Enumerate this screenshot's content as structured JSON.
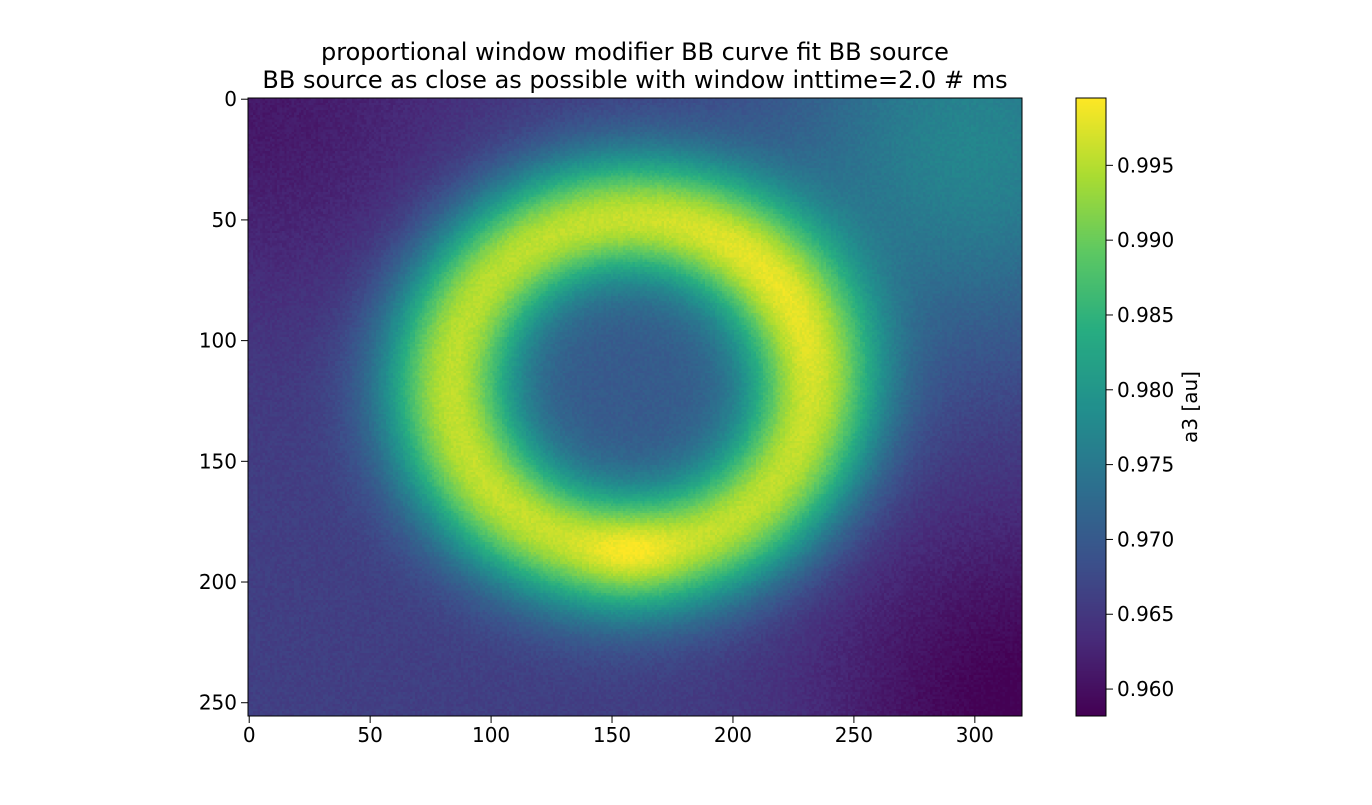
{
  "chart_data": {
    "type": "heatmap",
    "title": [
      "proportional window modifier BB curve fit BB source",
      "BB source as close as possible with window inttime=2.0 # ms"
    ],
    "xlabel": "",
    "ylabel": "",
    "image_shape": {
      "rows": 256,
      "cols": 320
    },
    "xlim": [
      -0.5,
      319.5
    ],
    "ylim": [
      255.5,
      -0.5
    ],
    "xticks": [
      0,
      50,
      100,
      150,
      200,
      250,
      300
    ],
    "yticks": [
      0,
      50,
      100,
      150,
      200,
      250
    ],
    "colormap": "viridis",
    "colorbar": {
      "label": "a3 [au]",
      "range": [
        0.9582,
        0.9995
      ],
      "ticks": [
        0.96,
        0.965,
        0.97,
        0.975,
        0.98,
        0.985,
        0.99,
        0.995
      ],
      "tick_labels": [
        "0.960",
        "0.965",
        "0.970",
        "0.975",
        "0.980",
        "0.985",
        "0.990",
        "0.995"
      ]
    },
    "field": {
      "ring_center": {
        "x": 158,
        "y": 118
      },
      "ring_radius": 74,
      "ring_width": 26,
      "ring_peak": 0.996,
      "brightest_point": {
        "x": 158,
        "y": 188,
        "value": 0.9995
      },
      "inner_plateau": 0.97,
      "outer_background": 0.966,
      "darkest_corners": {
        "top_left": 0.961,
        "bottom_right": 0.958
      },
      "top_right_region": 0.977
    }
  }
}
